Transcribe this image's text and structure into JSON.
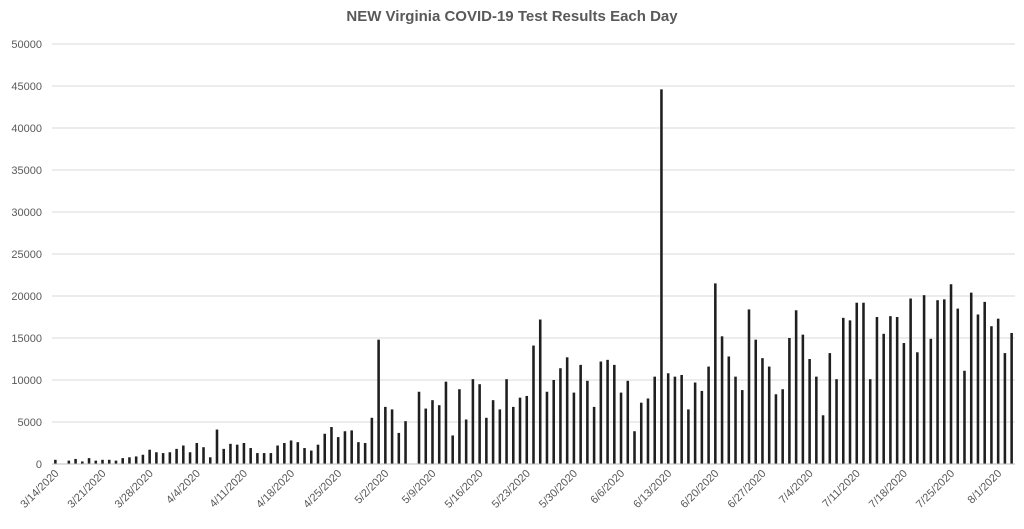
{
  "chart_data": {
    "type": "bar",
    "title": "NEW Virginia COVID-19 Test Results Each Day",
    "xlabel": "",
    "ylabel": "",
    "ylim": [
      0,
      50000
    ],
    "yticks": [
      0,
      5000,
      10000,
      15000,
      20000,
      25000,
      30000,
      35000,
      40000,
      45000,
      50000
    ],
    "grid": true,
    "legend": "none",
    "bar_color": "#1f1f1f",
    "grid_color": "#d9d9d9",
    "x_tick_labels": [
      "3/14/2020",
      "3/21/2020",
      "3/28/2020",
      "4/4/2020",
      "4/11/2020",
      "4/18/2020",
      "4/25/2020",
      "5/2/2020",
      "5/9/2020",
      "5/16/2020",
      "5/23/2020",
      "5/30/2020",
      "6/6/2020",
      "6/13/2020",
      "6/20/2020",
      "6/27/2020",
      "7/4/2020",
      "7/11/2020",
      "7/18/2020",
      "7/25/2020",
      "8/1/2020"
    ],
    "x_tick_every": 7,
    "values": [
      500,
      0,
      400,
      600,
      300,
      700,
      400,
      500,
      500,
      400,
      700,
      800,
      900,
      1100,
      1700,
      1400,
      1300,
      1400,
      1800,
      2200,
      1400,
      2500,
      2000,
      800,
      4100,
      1800,
      2400,
      2300,
      2500,
      1900,
      1300,
      1300,
      1300,
      2200,
      2500,
      2800,
      2600,
      1900,
      1600,
      2300,
      3600,
      4400,
      3200,
      3900,
      4000,
      2600,
      2500,
      5500,
      14800,
      6800,
      6500,
      3700,
      5100,
      0,
      8600,
      6600,
      7600,
      7000,
      9800,
      3400,
      8900,
      5300,
      10100,
      9500,
      5500,
      7600,
      6500,
      10100,
      6800,
      7900,
      8100,
      14100,
      17200,
      8600,
      10000,
      11400,
      12700,
      8500,
      11800,
      9900,
      6800,
      12200,
      12400,
      11800,
      8500,
      9900,
      3900,
      7300,
      7800,
      10400,
      44600,
      10800,
      10400,
      10600,
      6500,
      9700,
      8700,
      11600,
      21500,
      15200,
      12800,
      10400,
      8800,
      18400,
      14800,
      12600,
      11600,
      8300,
      8900,
      15000,
      18300,
      15400,
      12500,
      10400,
      5800,
      13200,
      10100,
      17400,
      17100,
      19200,
      19200,
      10100,
      17500,
      15500,
      17600,
      17500,
      14400,
      19700,
      13300,
      20100,
      14900,
      19500,
      19600,
      21400,
      18500,
      11100,
      20400,
      17800,
      19300,
      16400,
      17300,
      13200,
      15600
    ]
  }
}
